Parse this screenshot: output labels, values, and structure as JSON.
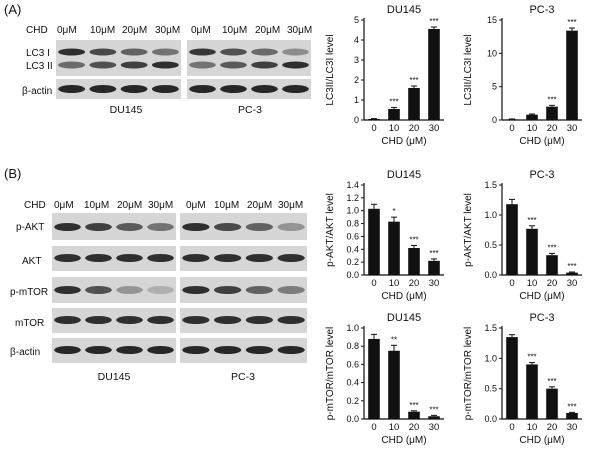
{
  "panels": {
    "A": {
      "label": "(A)"
    },
    "B": {
      "label": "(B)"
    }
  },
  "blot_A": {
    "chd_label": "CHD",
    "doses": [
      "0μM",
      "10μM",
      "20μM",
      "30μM"
    ],
    "rows": [
      "LC3 I",
      "LC3 II",
      "β-actin"
    ],
    "cell_lines": [
      "DU145",
      "PC-3"
    ],
    "intensity": {
      "DU145": {
        "LC3 I": [
          0.9,
          0.75,
          0.6,
          0.5
        ],
        "LC3 II": [
          0.55,
          0.7,
          0.8,
          0.9
        ],
        "β-actin": [
          0.95,
          0.95,
          0.95,
          0.95
        ]
      },
      "PC-3": {
        "LC3 I": [
          0.85,
          0.7,
          0.55,
          0.35
        ],
        "LC3 II": [
          0.5,
          0.65,
          0.8,
          0.9
        ],
        "β-actin": [
          0.95,
          0.95,
          0.95,
          0.95
        ]
      }
    }
  },
  "blot_B": {
    "chd_label": "CHD",
    "doses": [
      "0μM",
      "10μM",
      "20μM",
      "30μM"
    ],
    "rows": [
      "p-AKT",
      "AKT",
      "p-mTOR",
      "mTOR",
      "β-actin"
    ],
    "cell_lines": [
      "DU145",
      "PC-3"
    ],
    "intensity": {
      "DU145": {
        "p-AKT": [
          0.9,
          0.8,
          0.65,
          0.5
        ],
        "AKT": [
          0.9,
          0.9,
          0.9,
          0.9
        ],
        "p-mTOR": [
          0.9,
          0.7,
          0.3,
          0.15
        ],
        "mTOR": [
          0.9,
          0.9,
          0.9,
          0.9
        ],
        "β-actin": [
          0.95,
          0.95,
          0.95,
          0.95
        ]
      },
      "PC-3": {
        "p-AKT": [
          0.9,
          0.75,
          0.6,
          0.3
        ],
        "AKT": [
          0.9,
          0.9,
          0.9,
          0.9
        ],
        "p-mTOR": [
          0.9,
          0.8,
          0.6,
          0.45
        ],
        "mTOR": [
          0.9,
          0.9,
          0.9,
          0.9
        ],
        "β-actin": [
          0.95,
          0.95,
          0.95,
          0.95
        ]
      }
    }
  },
  "chart_data": [
    {
      "id": "lc3_du145",
      "type": "bar",
      "title": "DU145",
      "xlabel": "CHD (μM)",
      "ylabel": "LC3II/LC3I level",
      "categories": [
        "0",
        "10",
        "20",
        "30"
      ],
      "values": [
        0.05,
        0.55,
        1.6,
        4.55
      ],
      "errors": [
        0.02,
        0.08,
        0.1,
        0.1
      ],
      "sig": [
        "",
        "***",
        "***",
        "***"
      ],
      "ylim": [
        0,
        5
      ],
      "yticks": [
        "0",
        "1",
        "2",
        "3",
        "4",
        "5"
      ]
    },
    {
      "id": "lc3_pc3",
      "type": "bar",
      "title": "PC-3",
      "xlabel": "CHD (μM)",
      "ylabel": "LC3II/LC3I level",
      "categories": [
        "0",
        "10",
        "20",
        "30"
      ],
      "values": [
        0.1,
        0.8,
        2.0,
        13.4
      ],
      "errors": [
        0.05,
        0.1,
        0.2,
        0.4
      ],
      "sig": [
        "",
        "",
        "***",
        "***"
      ],
      "ylim": [
        0,
        15
      ],
      "yticks": [
        "0",
        "5",
        "10",
        "15"
      ]
    },
    {
      "id": "pakt_du145",
      "type": "bar",
      "title": "DU145",
      "xlabel": "CHD (μM)",
      "ylabel": "p-AKT/AKT level",
      "categories": [
        "0",
        "10",
        "20",
        "30"
      ],
      "values": [
        1.03,
        0.83,
        0.42,
        0.22
      ],
      "errors": [
        0.07,
        0.07,
        0.04,
        0.03
      ],
      "sig": [
        "",
        "*",
        "***",
        "***"
      ],
      "ylim": [
        0,
        1.4
      ],
      "yticks": [
        "0.0",
        "0.2",
        "0.4",
        "0.6",
        "0.8",
        "1.0",
        "1.2",
        "1.4"
      ]
    },
    {
      "id": "pakt_pc3",
      "type": "bar",
      "title": "PC-3",
      "xlabel": "CHD (μM)",
      "ylabel": "p-AKT/AKT level",
      "categories": [
        "0",
        "10",
        "20",
        "30"
      ],
      "values": [
        1.18,
        0.77,
        0.33,
        0.04
      ],
      "errors": [
        0.08,
        0.05,
        0.03,
        0.01
      ],
      "sig": [
        "",
        "***",
        "***",
        "***"
      ],
      "ylim": [
        0,
        1.5
      ],
      "yticks": [
        "0.0",
        "0.5",
        "1.0",
        "1.5"
      ]
    },
    {
      "id": "pmtor_du145",
      "type": "bar",
      "title": "DU145",
      "xlabel": "CHD (μM)",
      "ylabel": "p-mTOR/mTOR level",
      "categories": [
        "0",
        "10",
        "20",
        "30"
      ],
      "values": [
        0.88,
        0.75,
        0.08,
        0.03
      ],
      "errors": [
        0.05,
        0.06,
        0.01,
        0.01
      ],
      "sig": [
        "",
        "**",
        "***",
        "***"
      ],
      "ylim": [
        0,
        1.0
      ],
      "yticks": [
        "0.0",
        "0.2",
        "0.4",
        "0.6",
        "0.8",
        "1.0"
      ]
    },
    {
      "id": "pmtor_pc3",
      "type": "bar",
      "title": "PC-3",
      "xlabel": "CHD (μM)",
      "ylabel": "p-mTOR/mTOR level",
      "categories": [
        "0",
        "10",
        "20",
        "30"
      ],
      "values": [
        1.35,
        0.9,
        0.5,
        0.1
      ],
      "errors": [
        0.04,
        0.03,
        0.03,
        0.01
      ],
      "sig": [
        "",
        "***",
        "***",
        "***"
      ],
      "ylim": [
        0,
        1.5
      ],
      "yticks": [
        "0.0",
        "0.5",
        "1.0",
        "1.5"
      ]
    }
  ]
}
